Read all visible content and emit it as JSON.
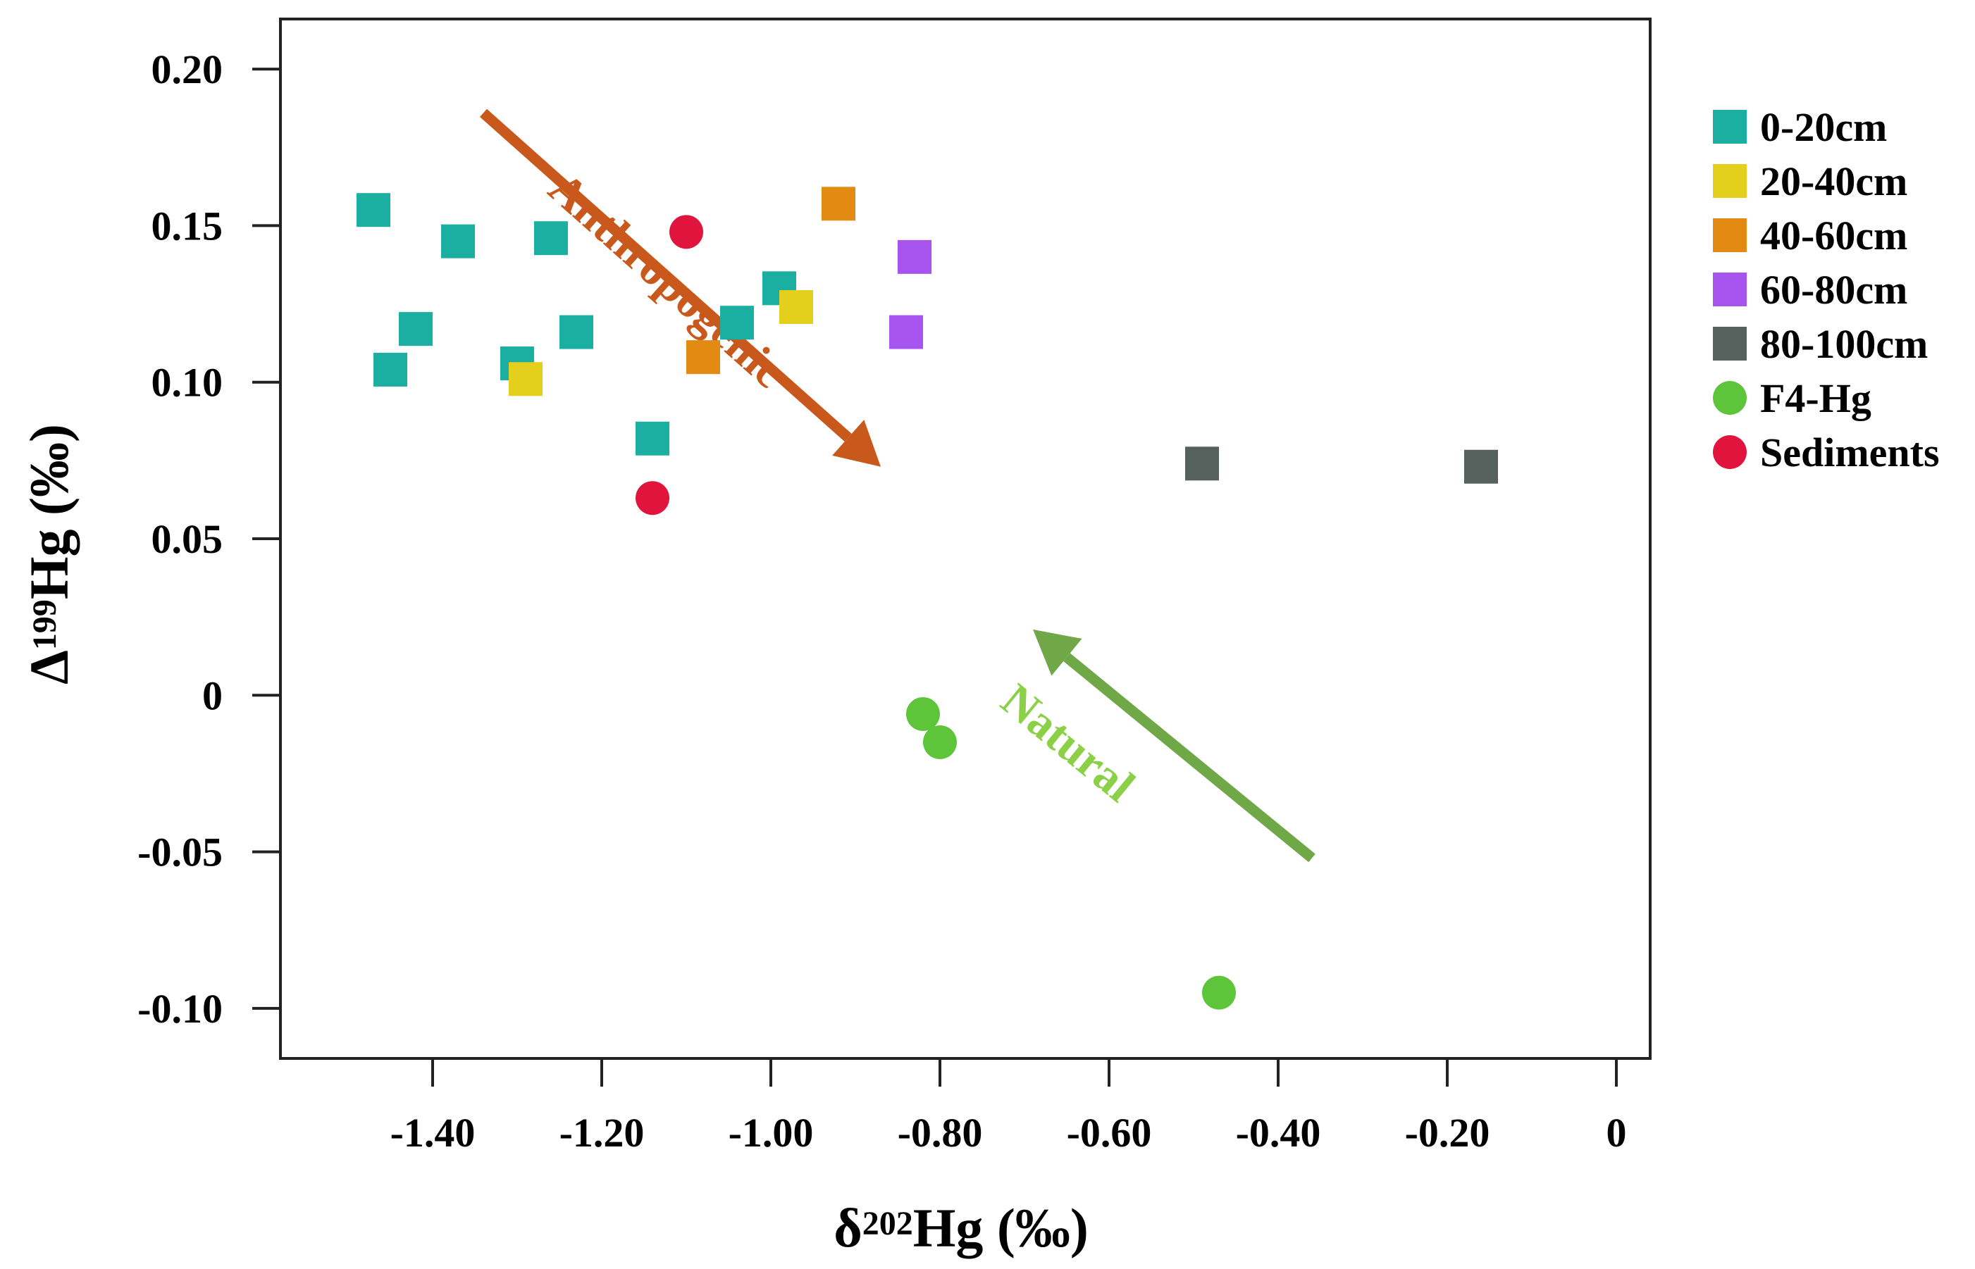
{
  "chart_data": {
    "type": "scatter",
    "xlabel": {
      "prefix": "δ",
      "sup": "202",
      "rest": "Hg (‰)"
    },
    "ylabel": {
      "prefix": "Δ",
      "sup": "199",
      "rest": "Hg (‰)"
    },
    "xlim": [
      -1.58,
      0.04
    ],
    "ylim": [
      -0.116,
      0.216
    ],
    "x_ticks": [
      {
        "value": -1.4,
        "label": "-1.40"
      },
      {
        "value": -1.2,
        "label": "-1.20"
      },
      {
        "value": -1.0,
        "label": "-1.00"
      },
      {
        "value": -0.8,
        "label": "-0.80"
      },
      {
        "value": -0.6,
        "label": "-0.60"
      },
      {
        "value": -0.4,
        "label": "-0.40"
      },
      {
        "value": -0.2,
        "label": "-0.20"
      },
      {
        "value": 0,
        "label": "0"
      }
    ],
    "y_ticks": [
      {
        "value": 0.2,
        "label": "0.20"
      },
      {
        "value": 0.15,
        "label": "0.15"
      },
      {
        "value": 0.1,
        "label": "0.10"
      },
      {
        "value": 0.05,
        "label": "0.05"
      },
      {
        "value": 0,
        "label": "0"
      },
      {
        "value": -0.05,
        "label": "-0.05"
      },
      {
        "value": -0.1,
        "label": "-0.10"
      }
    ],
    "grid": false,
    "legend_position": "right",
    "series": [
      {
        "name": "0-20cm",
        "marker": "square",
        "color": "#1AAFA0",
        "points": [
          [
            -1.47,
            0.155
          ],
          [
            -1.45,
            0.104
          ],
          [
            -1.42,
            0.117
          ],
          [
            -1.37,
            0.145
          ],
          [
            -1.3,
            0.106
          ],
          [
            -1.26,
            0.146
          ],
          [
            -1.23,
            0.116
          ],
          [
            -1.14,
            0.082
          ],
          [
            -1.04,
            0.119
          ],
          [
            -0.99,
            0.13
          ]
        ]
      },
      {
        "name": "20-40cm",
        "marker": "square",
        "color": "#E3CF1C",
        "points": [
          [
            -1.29,
            0.101
          ],
          [
            -0.97,
            0.124
          ]
        ]
      },
      {
        "name": "40-60cm",
        "marker": "square",
        "color": "#E38A12",
        "points": [
          [
            -0.92,
            0.157
          ],
          [
            -1.08,
            0.108
          ]
        ]
      },
      {
        "name": "60-80cm",
        "marker": "square",
        "color": "#A855F0",
        "points": [
          [
            -0.83,
            0.14
          ],
          [
            -0.84,
            0.116
          ]
        ]
      },
      {
        "name": "80-100cm",
        "marker": "square",
        "color": "#56605C",
        "points": [
          [
            -0.49,
            0.074
          ],
          [
            -0.16,
            0.073
          ]
        ]
      },
      {
        "name": "F4-Hg",
        "marker": "circle",
        "color": "#5EC43A",
        "points": [
          [
            -0.82,
            -0.006
          ],
          [
            -0.8,
            -0.015
          ],
          [
            -0.47,
            -0.095
          ]
        ]
      },
      {
        "name": "Sediments",
        "marker": "circle",
        "color": "#E0143C",
        "points": [
          [
            -1.1,
            0.148
          ],
          [
            -1.14,
            0.063
          ]
        ]
      }
    ],
    "annotations": [
      {
        "text": "Anthropogenic",
        "color": "#C8581C",
        "arrow_from": [
          -1.34,
          0.186
        ],
        "arrow_to": [
          -0.87,
          0.073
        ],
        "label_at": [
          -1.135,
          0.129
        ]
      },
      {
        "text": "Natural",
        "color": "#70A848",
        "text_color": "#8CD048",
        "arrow_from": [
          -0.36,
          -0.052
        ],
        "arrow_to": [
          -0.69,
          0.021
        ],
        "label_at": [
          -0.66,
          -0.019
        ]
      }
    ]
  }
}
